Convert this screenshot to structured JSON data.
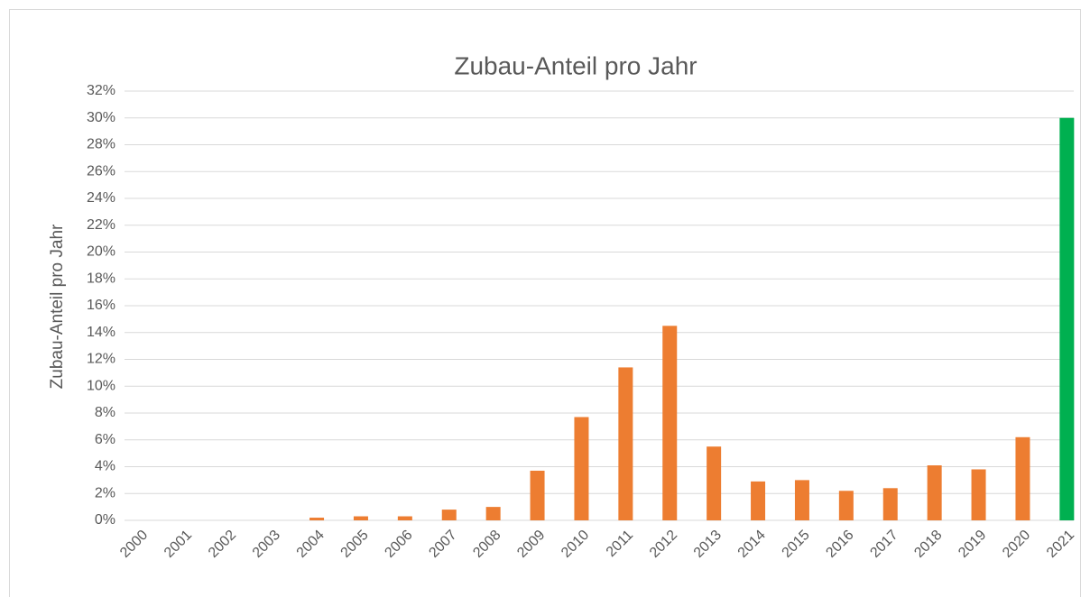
{
  "chart_data": {
    "type": "bar",
    "title": "Zubau-Anteil pro Jahr",
    "y_label": "Zubau-Anteil pro Jahr",
    "categories": [
      "2000",
      "2001",
      "2002",
      "2003",
      "2004",
      "2005",
      "2006",
      "2007",
      "2008",
      "2009",
      "2010",
      "2011",
      "2012",
      "2013",
      "2014",
      "2015",
      "2016",
      "2017",
      "2018",
      "2019",
      "2020",
      "2021"
    ],
    "values": [
      0,
      0,
      0,
      0,
      0.2,
      0.3,
      0.3,
      0.8,
      1.0,
      3.7,
      7.7,
      11.4,
      14.5,
      5.5,
      2.9,
      3.0,
      2.2,
      2.4,
      4.1,
      3.8,
      6.2,
      30
    ],
    "colors": [
      "#ed7d31",
      "#ed7d31",
      "#ed7d31",
      "#ed7d31",
      "#ed7d31",
      "#ed7d31",
      "#ed7d31",
      "#ed7d31",
      "#ed7d31",
      "#ed7d31",
      "#ed7d31",
      "#ed7d31",
      "#ed7d31",
      "#ed7d31",
      "#ed7d31",
      "#ed7d31",
      "#ed7d31",
      "#ed7d31",
      "#ed7d31",
      "#ed7d31",
      "#ed7d31",
      "#00b050"
    ],
    "ylim": [
      0,
      32
    ],
    "yticks": [
      {
        "value": 0,
        "label": "0%"
      },
      {
        "value": 2,
        "label": "2%"
      },
      {
        "value": 4,
        "label": "4%"
      },
      {
        "value": 6,
        "label": "6%"
      },
      {
        "value": 8,
        "label": "8%"
      },
      {
        "value": 10,
        "label": "10%"
      },
      {
        "value": 12,
        "label": "12%"
      },
      {
        "value": 14,
        "label": "14%"
      },
      {
        "value": 16,
        "label": "16%"
      },
      {
        "value": 18,
        "label": "18%"
      },
      {
        "value": 20,
        "label": "20%"
      },
      {
        "value": 22,
        "label": "22%"
      },
      {
        "value": 24,
        "label": "24%"
      },
      {
        "value": 26,
        "label": "26%"
      },
      {
        "value": 28,
        "label": "28%"
      },
      {
        "value": 30,
        "label": "30%"
      },
      {
        "value": 32,
        "label": "32%"
      }
    ],
    "grid": true
  }
}
